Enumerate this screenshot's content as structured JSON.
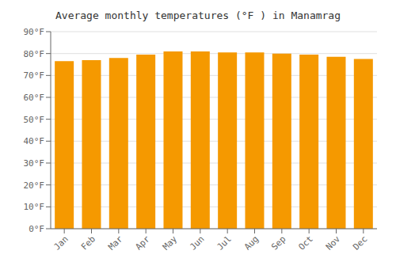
{
  "chart_data": {
    "type": "bar",
    "title": "Average monthly temperatures (°F ) in Manamrag",
    "categories": [
      "Jan",
      "Feb",
      "Mar",
      "Apr",
      "May",
      "Jun",
      "Jul",
      "Aug",
      "Sep",
      "Oct",
      "Nov",
      "Dec"
    ],
    "values": [
      76.5,
      77.0,
      78.0,
      79.5,
      81.0,
      81.0,
      80.5,
      80.5,
      80.0,
      79.5,
      78.5,
      77.5
    ],
    "color": "#F59900",
    "ylim": [
      0,
      90
    ],
    "yticks": [
      {
        "value": 0,
        "label": "0°F"
      },
      {
        "value": 10,
        "label": "10°F"
      },
      {
        "value": 20,
        "label": "20°F"
      },
      {
        "value": 30,
        "label": "30°F"
      },
      {
        "value": 40,
        "label": "40°F"
      },
      {
        "value": 50,
        "label": "50°F"
      },
      {
        "value": 60,
        "label": "60°F"
      },
      {
        "value": 70,
        "label": "70°F"
      },
      {
        "value": 80,
        "label": "80°F"
      },
      {
        "value": 90,
        "label": "90°F"
      }
    ],
    "grid": true
  }
}
